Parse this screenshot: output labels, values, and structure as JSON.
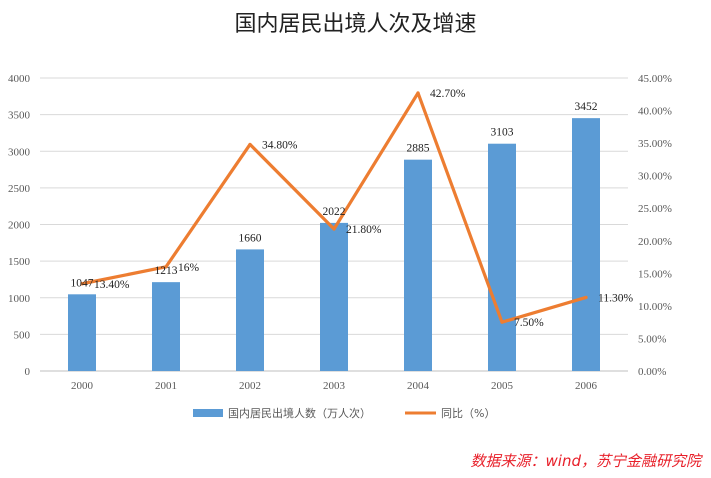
{
  "chart_data": {
    "type": "bar",
    "title": "国内居民出境人次及增速",
    "categories": [
      "2000",
      "2001",
      "2002",
      "2003",
      "2004",
      "2005",
      "2006"
    ],
    "series": [
      {
        "name": "国内居民出境人数（万人次）",
        "type": "bar",
        "axis": "left",
        "color": "#5b9bd5",
        "values": [
          1047,
          1213,
          1660,
          2022,
          2885,
          3103,
          3452
        ],
        "labels": [
          "1047",
          "1213",
          "1660",
          "2022",
          "2885",
          "3103",
          "3452"
        ]
      },
      {
        "name": "同比（%）",
        "type": "line",
        "axis": "right",
        "color": "#ed7d31",
        "values": [
          13.4,
          16,
          34.8,
          21.8,
          42.7,
          7.5,
          11.3
        ],
        "labels": [
          "13.40%",
          "16%",
          "34.80%",
          "21.80%",
          "42.70%",
          "7.50%",
          "11.30%"
        ]
      }
    ],
    "y_left": {
      "ylim": [
        0,
        4000
      ],
      "ticks": [
        "0",
        "500",
        "1000",
        "1500",
        "2000",
        "2500",
        "3000",
        "3500",
        "4000"
      ]
    },
    "y_right": {
      "ylim": [
        0,
        45
      ],
      "ticks": [
        "0.00%",
        "5.00%",
        "10.00%",
        "15.00%",
        "20.00%",
        "25.00%",
        "30.00%",
        "35.00%",
        "40.00%",
        "45.00%"
      ]
    },
    "grid": true,
    "legend_position": "bottom"
  },
  "source_note": "数据来源：wind，苏宁金融研究院"
}
